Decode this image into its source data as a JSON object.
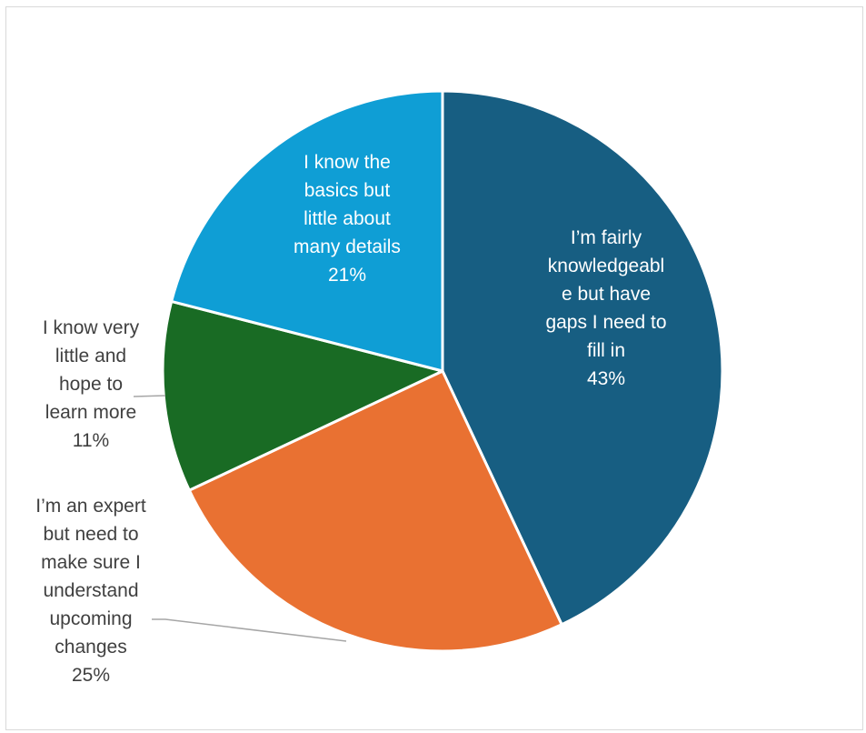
{
  "chart_data": {
    "type": "pie",
    "title": "",
    "slices": [
      {
        "label_lines": [
          "I’m fairly",
          "knowledgeabl",
          "e but have",
          "gaps I need to",
          "fill in"
        ],
        "value": 43,
        "percent_label": "43%",
        "color": "#175e82"
      },
      {
        "label_lines": [
          "I’m an expert",
          "but need to",
          "make sure I",
          "understand",
          "upcoming",
          "changes"
        ],
        "value": 25,
        "percent_label": "25%",
        "color": "#e97132"
      },
      {
        "label_lines": [
          "I know very",
          "little and",
          "hope to",
          "learn more"
        ],
        "value": 11,
        "percent_label": "11%",
        "color": "#196b24"
      },
      {
        "label_lines": [
          "I know the",
          "basics but",
          "little about",
          "many details"
        ],
        "value": 21,
        "percent_label": "21%",
        "color": "#0f9ed5"
      }
    ],
    "label_colors": {
      "inside": "#ffffff",
      "outside": "#404040",
      "leader": "#a6a6a6"
    }
  }
}
